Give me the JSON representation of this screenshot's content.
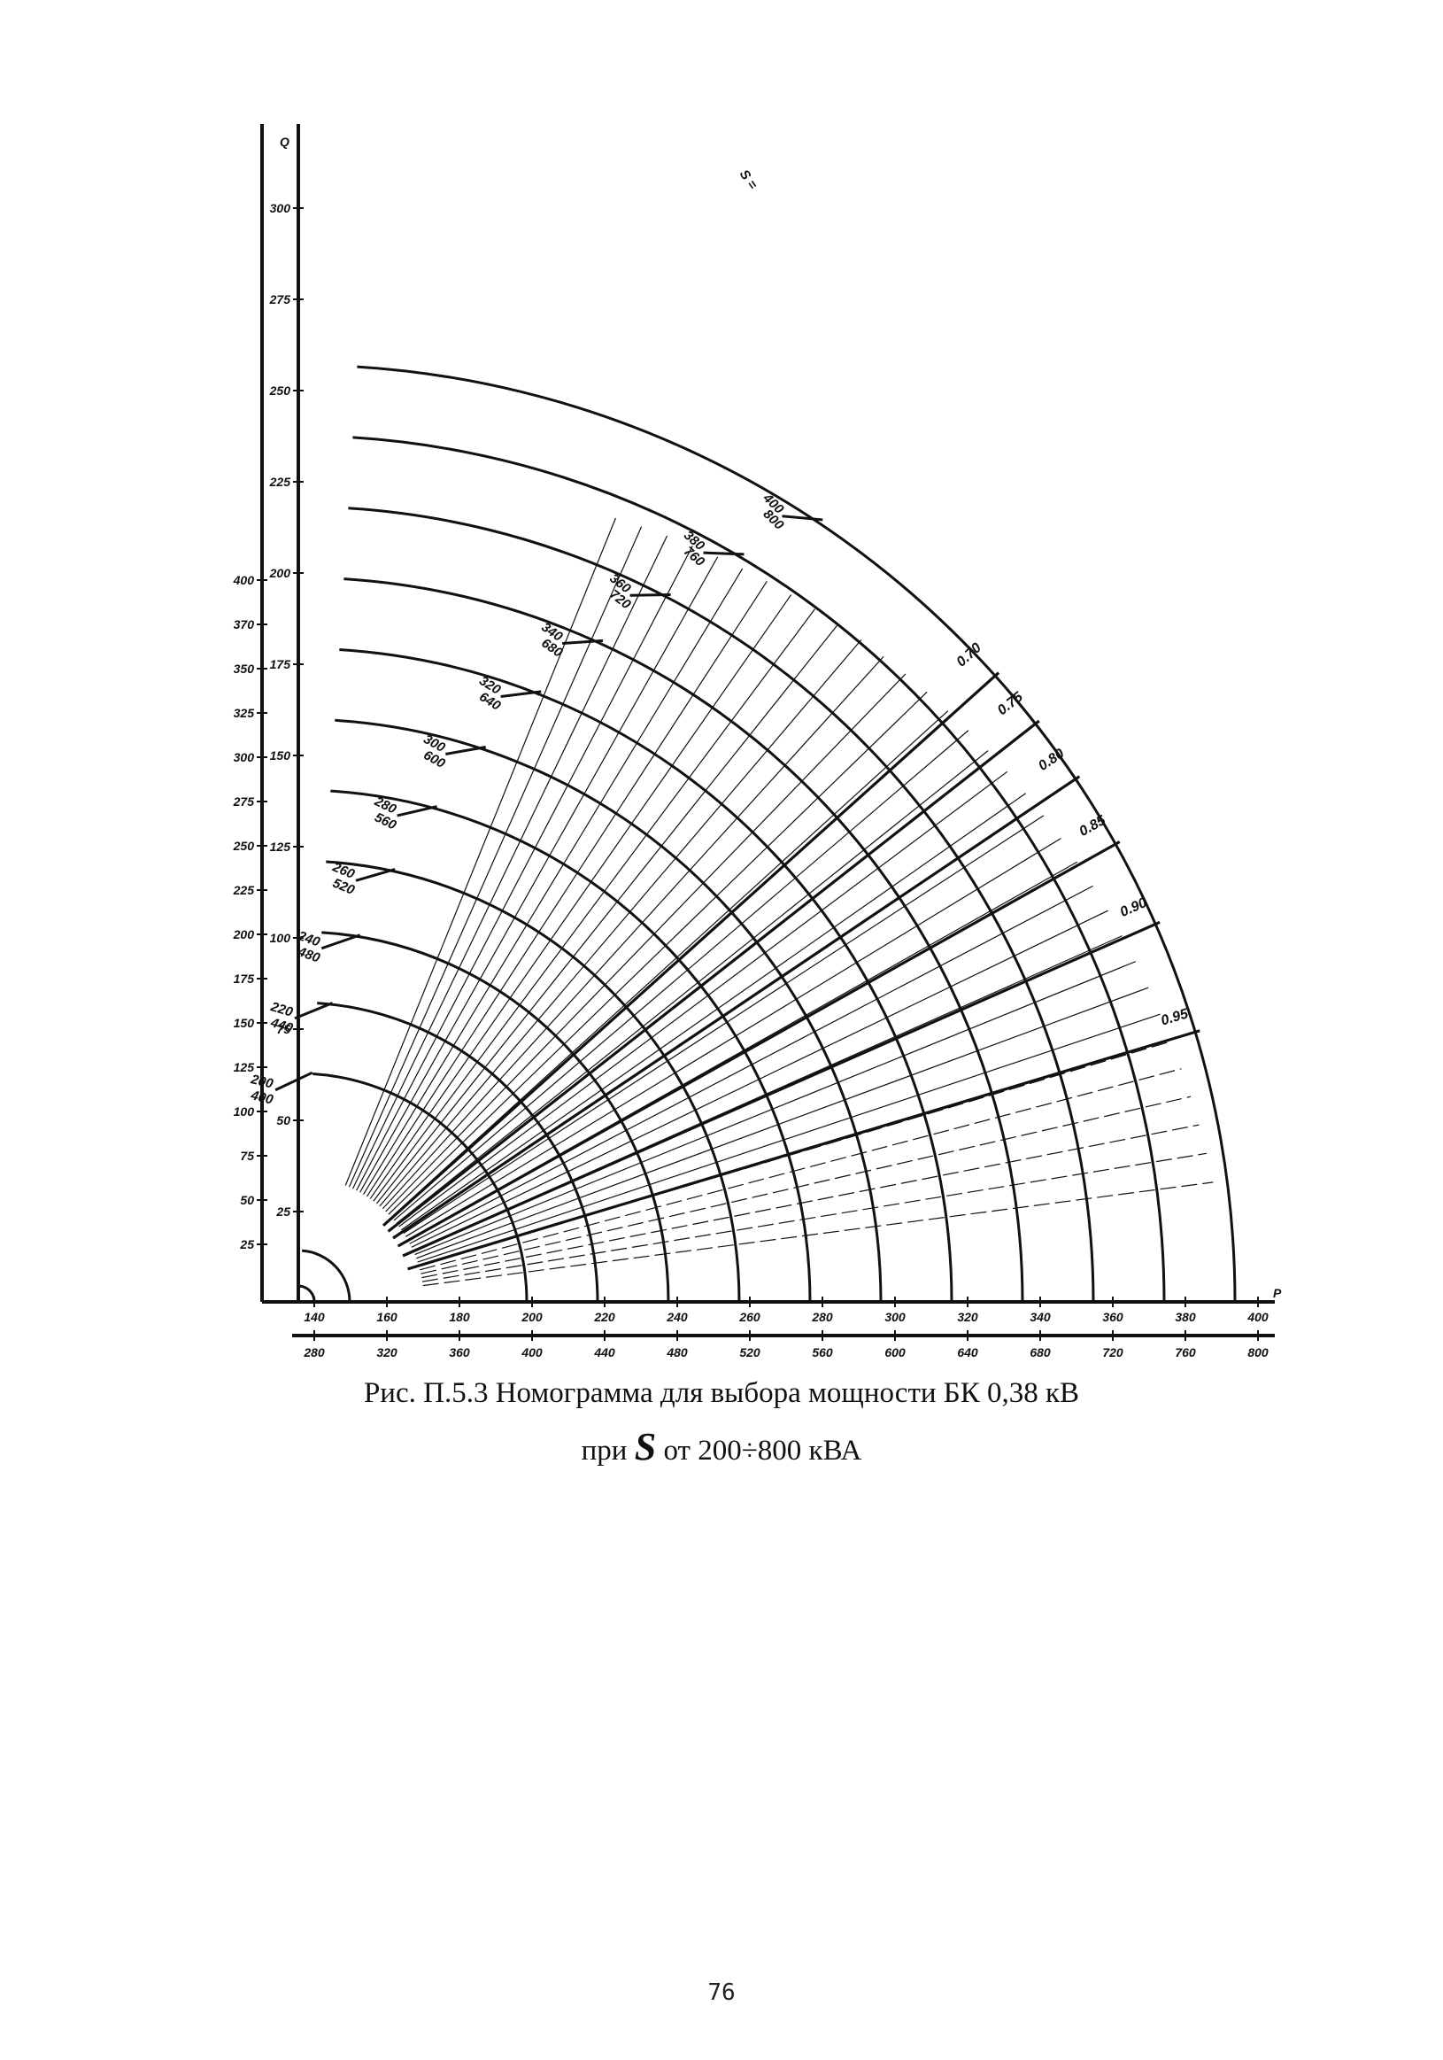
{
  "figure": {
    "caption_line1": "Рис. П.5.3 Номограмма для выбора мощности БК 0,38 кВ",
    "caption_line2_prefix": "при ",
    "caption_line2_symbol": "S",
    "caption_line2_suffix": " от 200÷800 кВА",
    "page_number": "76"
  },
  "axes": {
    "q_label": "Q",
    "p_label": "P",
    "s_label": "S ="
  },
  "p_axis": {
    "upper_ticks": [
      "140",
      "160",
      "180",
      "200",
      "220",
      "240",
      "260",
      "280",
      "300",
      "320",
      "340",
      "360",
      "380",
      "400"
    ],
    "lower_ticks": [
      "280",
      "320",
      "360",
      "400",
      "440",
      "480",
      "520",
      "560",
      "600",
      "640",
      "680",
      "720",
      "760",
      "800"
    ]
  },
  "q_axis": {
    "right_ticks": [
      "300",
      "275",
      "250",
      "225",
      "200",
      "175",
      "150",
      "125",
      "100",
      "75",
      "50",
      "25"
    ],
    "left_ticks": [
      "400",
      "370",
      "350",
      "325",
      "300",
      "275",
      "250",
      "225",
      "200",
      "175",
      "150",
      "125",
      "100",
      "75",
      "50",
      "25"
    ]
  },
  "s_lines": [
    {
      "top": "200",
      "bottom": "400"
    },
    {
      "top": "220",
      "bottom": "440"
    },
    {
      "top": "240",
      "bottom": "480"
    },
    {
      "top": "260",
      "bottom": "520"
    },
    {
      "top": "280",
      "bottom": "560"
    },
    {
      "top": "300",
      "bottom": "600"
    },
    {
      "top": "320",
      "bottom": "640"
    },
    {
      "top": "340",
      "bottom": "680"
    },
    {
      "top": "360",
      "bottom": "720"
    },
    {
      "top": "380",
      "bottom": "760"
    },
    {
      "top": "400",
      "bottom": "800"
    }
  ],
  "cos_phi": [
    "0.70",
    "0.75",
    "0.80",
    "0.85",
    "0.90",
    "0.95"
  ],
  "colors": {
    "ink": "#111111",
    "paper": "#ffffff"
  }
}
